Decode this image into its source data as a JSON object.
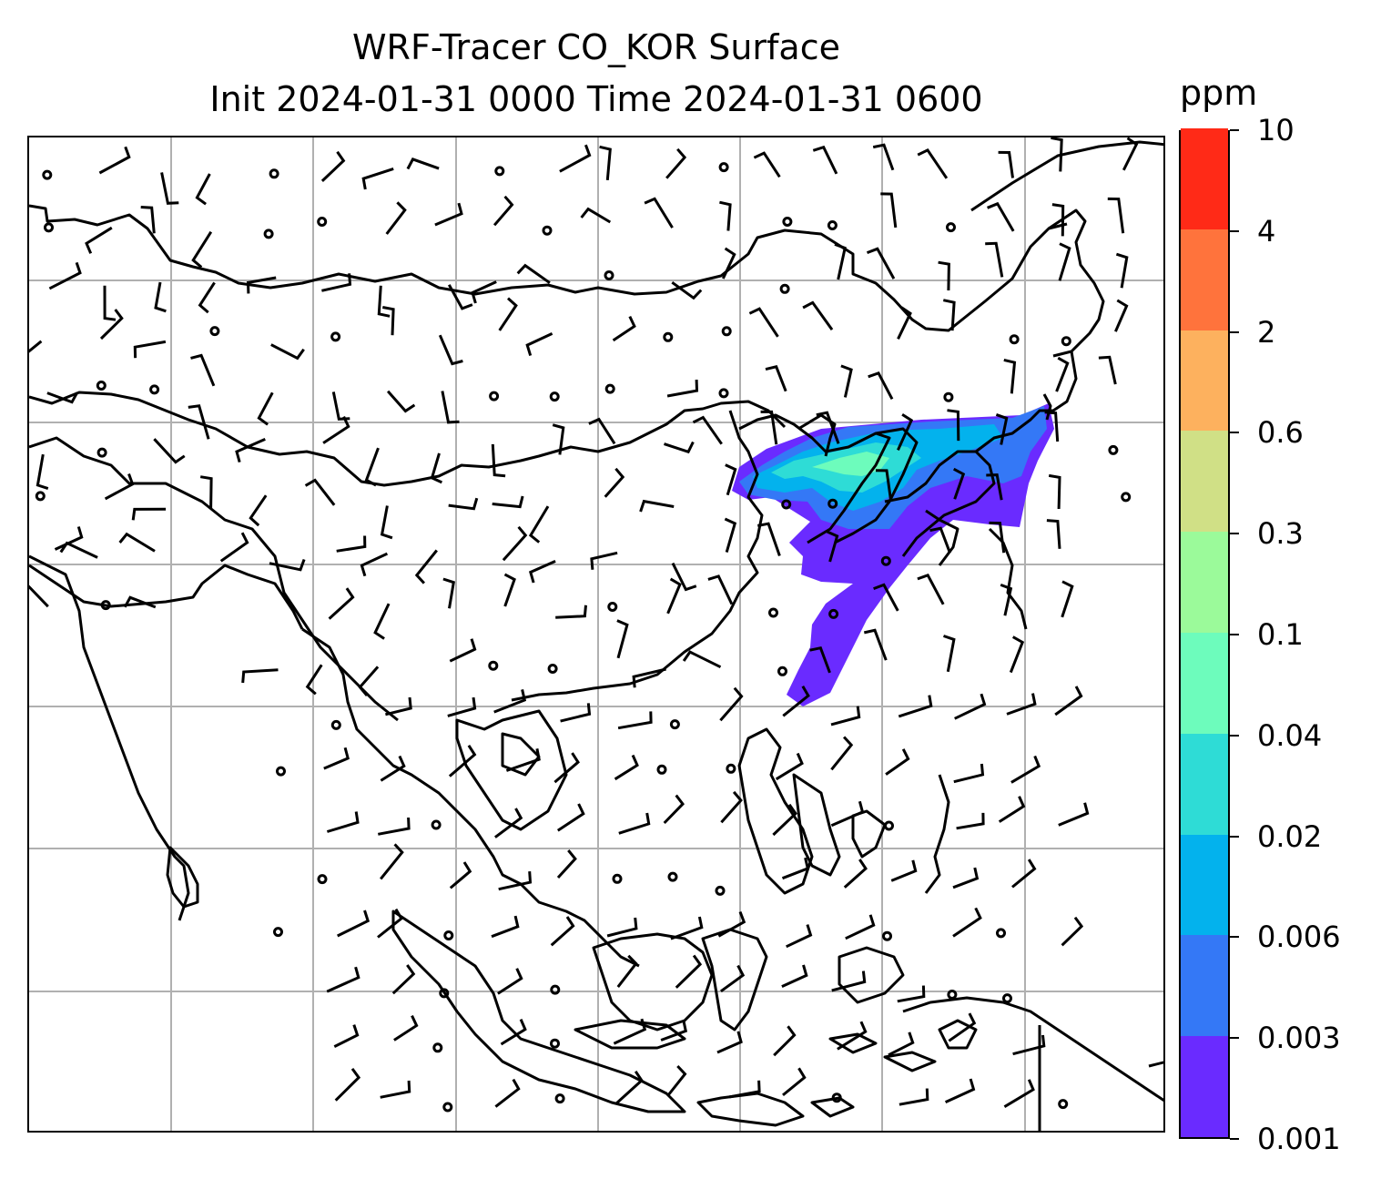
{
  "title": {
    "line1": "WRF-Tracer CO_KOR Surface",
    "line2": "Init 2024-01-31 0000 Time 2024-01-31 0600"
  },
  "colorbar": {
    "unit": "ppm",
    "ticks": [
      "0.001",
      "0.003",
      "0.006",
      "0.02",
      "0.04",
      "0.1",
      "0.3",
      "0.6",
      "2",
      "4",
      "10"
    ],
    "colors": [
      "#6a2bff",
      "#3478f6",
      "#03b2ed",
      "#2edcd6",
      "#6dfcbc",
      "#9bfa9a",
      "#d0e086",
      "#fdb15e",
      "#ff733c",
      "#ff2a17"
    ]
  },
  "map": {
    "field": "CO_KOR tracer concentration",
    "gridlines": true,
    "coastline_color": "#000000",
    "gridline_color": "#b0b0b0",
    "wind_barbs": true
  }
}
